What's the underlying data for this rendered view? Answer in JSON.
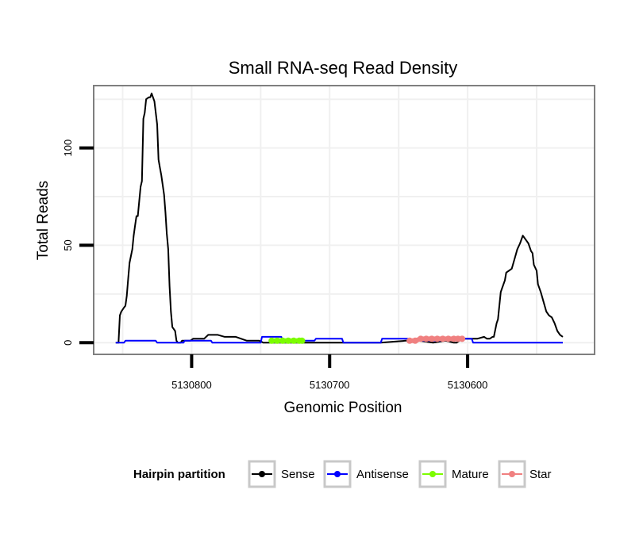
{
  "chart_data": {
    "type": "line",
    "title": "Small RNA-seq Read Density",
    "xlabel": "Genomic Position",
    "ylabel": "Total Reads",
    "x_reversed": true,
    "xlim": [
      5130871,
      5130508
    ],
    "ylim": [
      -6,
      132
    ],
    "x_ticks": [
      {
        "value": 5130800,
        "label": "5130800"
      },
      {
        "value": 5130700,
        "label": "5130700"
      },
      {
        "value": 5130600,
        "label": "5130600"
      }
    ],
    "y_ticks": [
      {
        "value": 0,
        "label": "0"
      },
      {
        "value": 50,
        "label": "50"
      },
      {
        "value": 100,
        "label": "100"
      }
    ],
    "x_grid": [
      5130850,
      5130800,
      5130750,
      5130700,
      5130650,
      5130600,
      5130550
    ],
    "y_grid": [
      0,
      25,
      50,
      75,
      100,
      125
    ],
    "legend": {
      "title": "Hairpin partition",
      "position": "bottom",
      "entries": [
        {
          "name": "Sense",
          "color": "#000000"
        },
        {
          "name": "Antisense",
          "color": "#0000ff"
        },
        {
          "name": "Mature",
          "color": "#7cfc00"
        },
        {
          "name": "Star",
          "color": "#f08080"
        }
      ]
    },
    "series": [
      {
        "name": "Sense",
        "color": "#000000",
        "x": [
          5130855,
          5130853,
          5130852,
          5130851,
          5130849,
          5130848,
          5130847,
          5130846,
          5130845,
          5130843,
          5130842,
          5130841,
          5130840,
          5130839,
          5130837,
          5130836,
          5130835,
          5130834,
          5130833,
          5130831,
          5130830,
          5130829,
          5130828,
          5130827,
          5130825,
          5130824,
          5130823,
          5130822,
          5130820,
          5130819,
          5130818,
          5130817,
          5130816,
          5130815,
          5130814,
          5130812,
          5130811,
          5130810,
          5130808,
          5130807,
          5130806,
          5130801,
          5130799,
          5130791,
          5130788,
          5130781,
          5130776,
          5130768,
          5130760,
          5130751,
          5130748,
          5130721,
          5130713,
          5130703,
          5130683,
          5130663,
          5130645,
          5130635,
          5130625,
          5130616,
          5130610,
          5130608,
          5130604,
          5130602,
          5130599,
          5130593,
          5130588,
          5130586,
          5130584,
          5130582,
          5130581,
          5130579,
          5130578,
          5130576,
          5130575,
          5130573,
          5130572,
          5130570,
          5130568,
          5130566,
          5130564,
          5130562,
          5130560,
          5130558,
          5130556,
          5130554,
          5130553,
          5130552,
          5130550,
          5130549,
          5130547,
          5130545,
          5130543,
          5130541,
          5130539,
          5130537,
          5130535,
          5130533,
          5130531
        ],
        "y": [
          0,
          0,
          14,
          16,
          18,
          19,
          24,
          33,
          41,
          48,
          55,
          60,
          65,
          65,
          80,
          83,
          115,
          118,
          125,
          126,
          126,
          128,
          126,
          124,
          112,
          94,
          90,
          86,
          76,
          67,
          56,
          48,
          29,
          16,
          8,
          6,
          1,
          0,
          0,
          1,
          1,
          1,
          2,
          2,
          4,
          4,
          3,
          3,
          1,
          1,
          0,
          0,
          0,
          0,
          0,
          0,
          1,
          1,
          0,
          1,
          0,
          0,
          2,
          2,
          2,
          2,
          3,
          2,
          2,
          3,
          3,
          10,
          12,
          26,
          28,
          32,
          36,
          37,
          38,
          43,
          48,
          51,
          55,
          53,
          51,
          47,
          46,
          40,
          37,
          30,
          26,
          21,
          16,
          14,
          13,
          10,
          6,
          4,
          3
        ],
        "from_index": 0
      },
      {
        "name": "Antisense",
        "color": "#0000ff",
        "x": [
          5130855,
          5130849,
          5130848,
          5130826,
          5130825,
          5130806,
          5130805,
          5130786,
          5130785,
          5130750,
          5130749,
          5130735,
          5130734,
          5130711,
          5130710,
          5130691,
          5130690,
          5130663,
          5130662,
          5130643,
          5130642,
          5130620,
          5130619,
          5130597,
          5130596,
          5130531
        ],
        "y": [
          0,
          0,
          1,
          1,
          0,
          0,
          1,
          1,
          0,
          0,
          3,
          3,
          1,
          1,
          2,
          2,
          0,
          0,
          2,
          2,
          1,
          1,
          2,
          2,
          0,
          0
        ]
      },
      {
        "name": "Mature",
        "color": "#7cfc00",
        "marker": true,
        "x": [
          5130742,
          5130738,
          5130734,
          5130730,
          5130726,
          5130722,
          5130720
        ],
        "y": [
          1,
          1,
          1,
          1,
          1,
          1,
          1
        ]
      },
      {
        "name": "Star",
        "color": "#f08080",
        "marker": true,
        "x": [
          5130642,
          5130638,
          5130634,
          5130630,
          5130626,
          5130622,
          5130618,
          5130614,
          5130610,
          5130607,
          5130604
        ],
        "y": [
          1,
          1,
          2,
          2,
          2,
          2,
          2,
          2,
          2,
          2,
          2
        ]
      }
    ]
  }
}
